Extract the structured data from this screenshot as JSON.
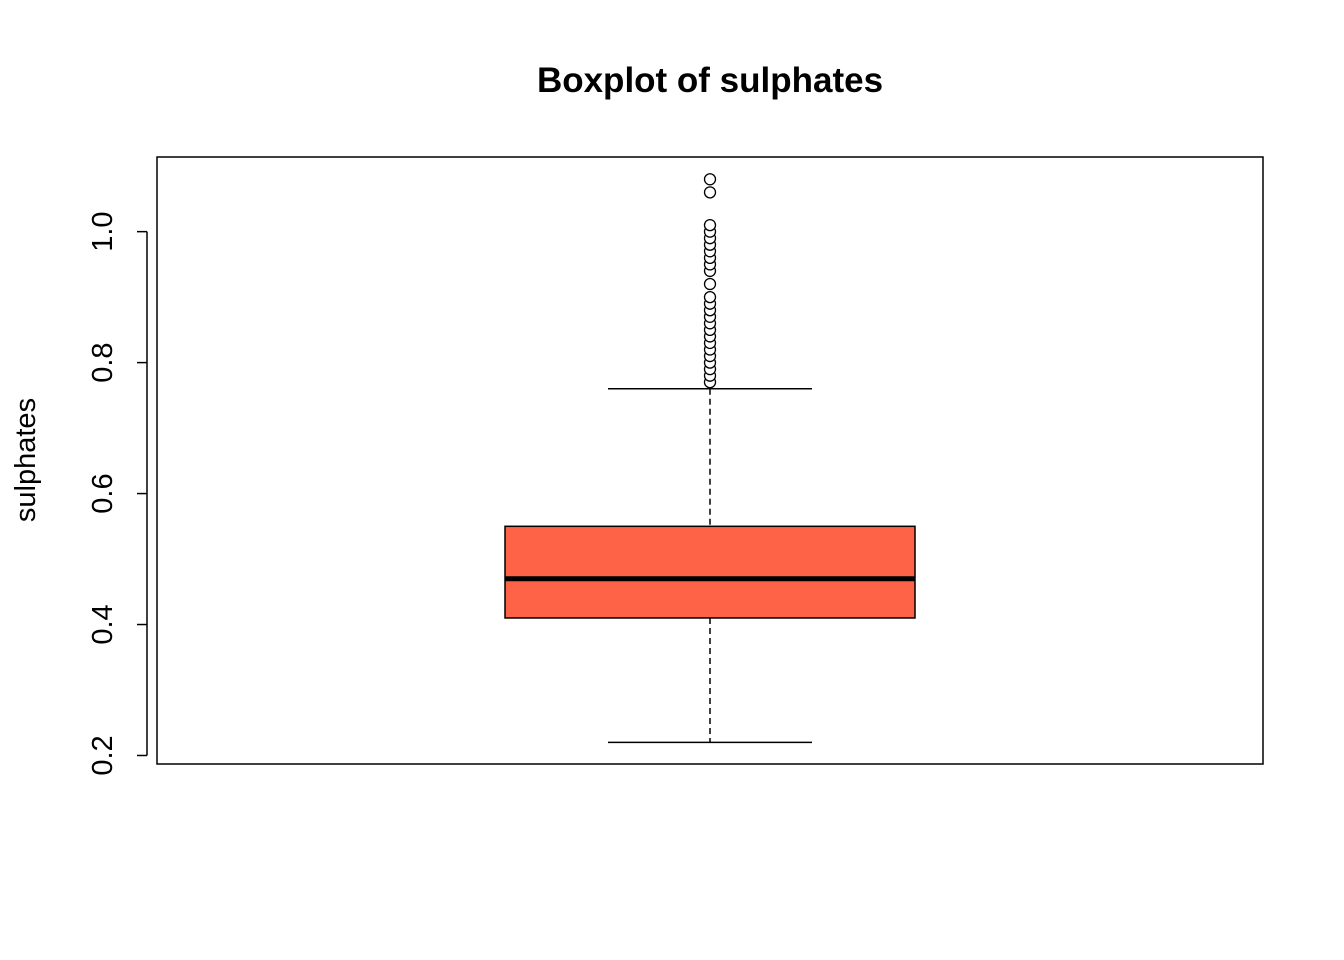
{
  "chart_data": {
    "type": "boxplot",
    "title": "Boxplot of sulphates",
    "xlabel": "",
    "ylabel": "sulphates",
    "ylim": [
      0.187,
      1.114
    ],
    "yticks": [
      0.2,
      0.4,
      0.6,
      0.8,
      1.0
    ],
    "ytick_labels": [
      "0.2",
      "0.4",
      "0.6",
      "0.8",
      "1.0"
    ],
    "grid": false,
    "box_color": "#FF6347",
    "stats": {
      "whisker_low": 0.22,
      "q1": 0.41,
      "median": 0.47,
      "q3": 0.55,
      "whisker_high": 0.76
    },
    "outliers": [
      0.77,
      0.78,
      0.79,
      0.8,
      0.81,
      0.82,
      0.83,
      0.84,
      0.85,
      0.86,
      0.87,
      0.88,
      0.89,
      0.9,
      0.92,
      0.94,
      0.95,
      0.96,
      0.97,
      0.98,
      0.99,
      1.0,
      1.01,
      1.06,
      1.08
    ]
  }
}
